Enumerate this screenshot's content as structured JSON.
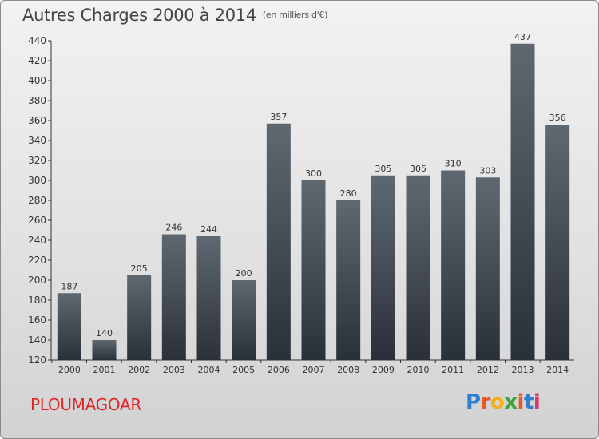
{
  "header": {
    "title": "Autres Charges 2000 à 2014",
    "subtitle": "(en milliers d'€)"
  },
  "footer": {
    "place": "PLOUMAGOAR",
    "logo": {
      "text": "Proxiti",
      "letters": [
        {
          "ch": "P",
          "color": "#2f7fd1"
        },
        {
          "ch": "r",
          "color": "#e85a23"
        },
        {
          "ch": "o",
          "color": "#f3b01c"
        },
        {
          "ch": "x",
          "color": "#3da33d"
        },
        {
          "ch": "i",
          "color": "#e85a23"
        },
        {
          "ch": "t",
          "color": "#2f7fd1"
        },
        {
          "ch": "i",
          "color": "#d23a6f"
        }
      ]
    }
  },
  "chart_data": {
    "type": "bar",
    "title": "Autres Charges 2000 à 2014",
    "subtitle": "(en milliers d'€)",
    "categories": [
      "2000",
      "2001",
      "2002",
      "2003",
      "2004",
      "2005",
      "2006",
      "2007",
      "2008",
      "2009",
      "2010",
      "2011",
      "2012",
      "2013",
      "2014"
    ],
    "values": [
      187,
      140,
      205,
      246,
      244,
      200,
      357,
      300,
      280,
      305,
      305,
      310,
      303,
      437,
      356
    ],
    "ylim": [
      120,
      440
    ],
    "yticks": [
      120,
      140,
      160,
      180,
      200,
      220,
      240,
      260,
      280,
      300,
      320,
      340,
      360,
      380,
      400,
      420,
      440
    ],
    "grid": false,
    "bar_color_top": "#5f6870",
    "bar_color_bottom": "#2a3038",
    "xlabel": "",
    "ylabel": ""
  }
}
